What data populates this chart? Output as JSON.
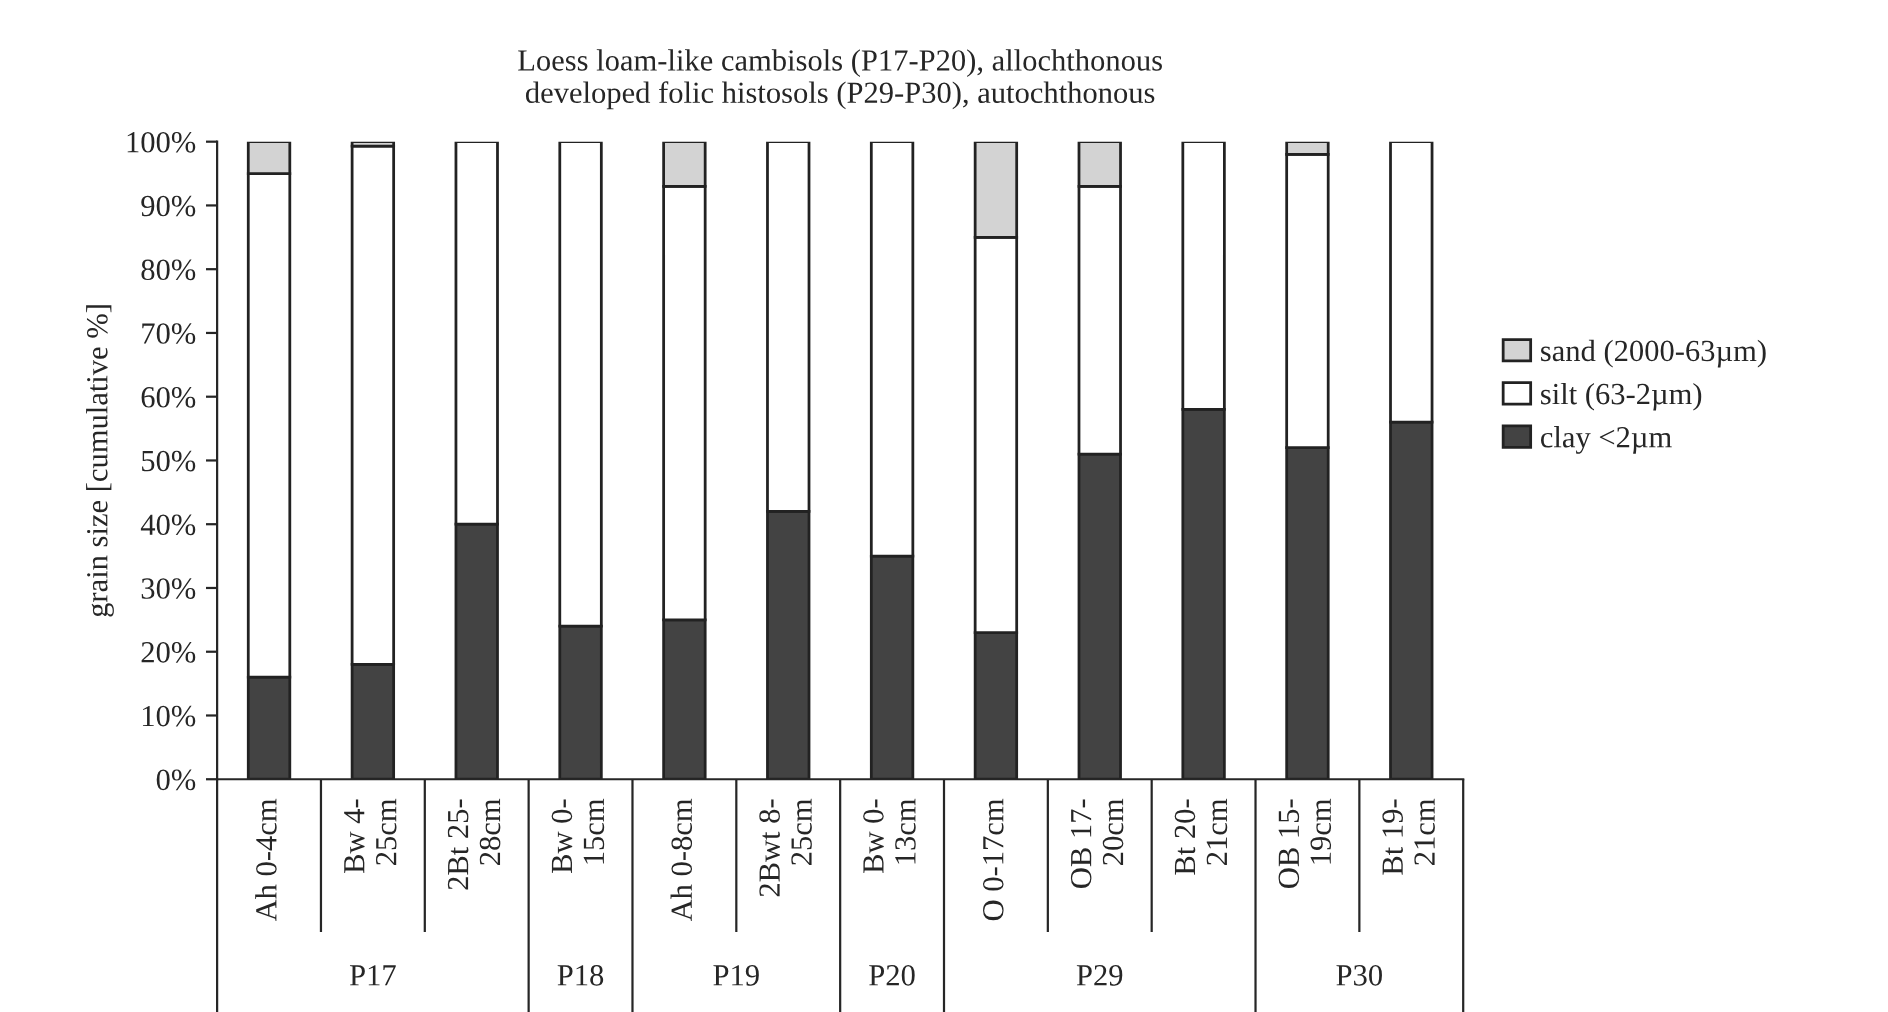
{
  "chart_data": {
    "type": "bar",
    "stacked": true,
    "title": "Loess loam-like cambisols (P17-P20), allochthonous\ndeveloped folic histosols (P29-P30), autochthonous",
    "ylabel": "grain size [cumulative %]",
    "categories": [
      "Ah 0-4cm",
      "Bw 4-\n25cm",
      "2Bt 25-\n28cm",
      "Bw 0-\n15cm",
      "Ah 0-8cm",
      "2Bwt 8-\n25cm",
      "Bw 0-\n13cm",
      "O 0-17cm",
      "OB 17-\n20cm",
      "Bt 20-\n21cm",
      "OB 15-\n19cm",
      "Bt 19-\n21cm"
    ],
    "series": [
      {
        "name": "clay <2µm",
        "color": "#434343",
        "values": [
          16,
          18,
          40,
          24,
          25,
          42,
          35,
          23,
          51,
          58,
          52,
          56
        ]
      },
      {
        "name": "silt (63-2µm)",
        "color": "#ffffff",
        "values": [
          79,
          81.3,
          60,
          76,
          68,
          58,
          65,
          62,
          42,
          42,
          46,
          44
        ]
      },
      {
        "name": "sand (2000-63µm)",
        "color": "#d3d3d3",
        "values": [
          5,
          0.7,
          null,
          null,
          7,
          null,
          null,
          15,
          7,
          null,
          2,
          null
        ]
      }
    ],
    "ylim": [
      0,
      100
    ],
    "yticks": [
      {
        "value": 0,
        "label": "0%"
      },
      {
        "value": 10,
        "label": "10%"
      },
      {
        "value": 20,
        "label": "20%"
      },
      {
        "value": 30,
        "label": "30%"
      },
      {
        "value": 40,
        "label": "40%"
      },
      {
        "value": 50,
        "label": "50%"
      },
      {
        "value": 60,
        "label": "60%"
      },
      {
        "value": 70,
        "label": "70%"
      },
      {
        "value": 80,
        "label": "80%"
      },
      {
        "value": 90,
        "label": "90%"
      },
      {
        "value": 100,
        "label": "100%"
      }
    ],
    "grid": false,
    "legend": "right",
    "annotations": [
      "P17",
      "P18",
      "P19",
      "P20",
      "P29",
      "P30"
    ]
  }
}
